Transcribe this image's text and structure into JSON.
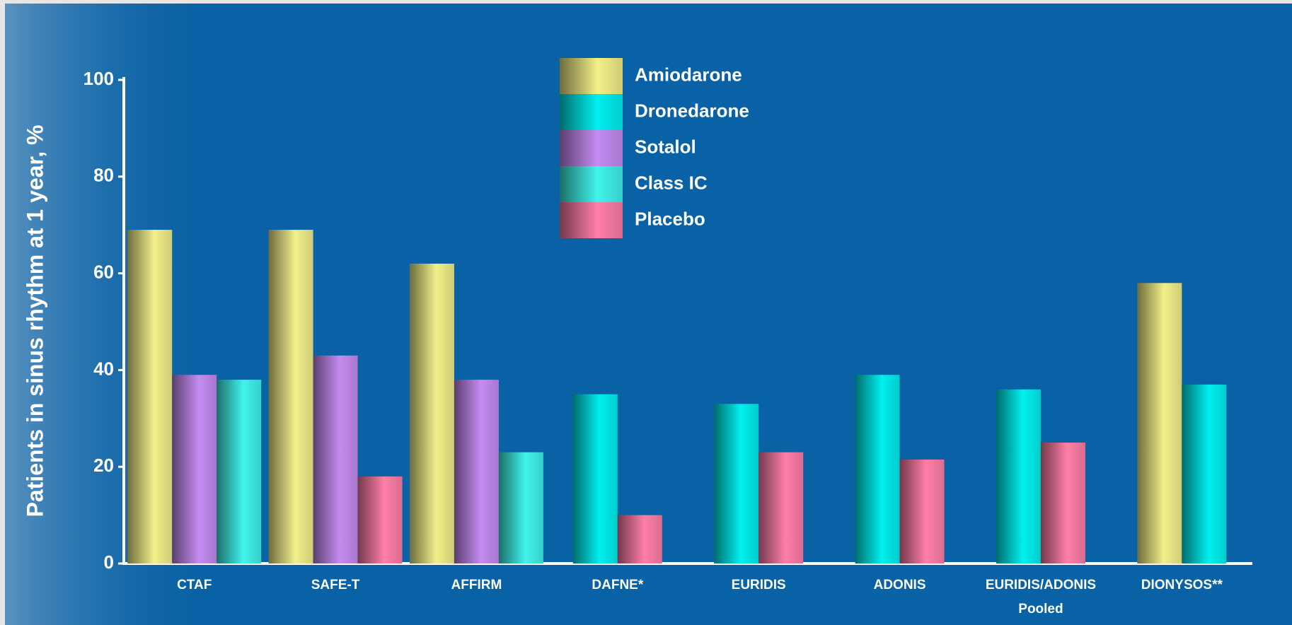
{
  "chart_data": {
    "type": "bar",
    "y_label": "Patients in sinus rhythm at 1 year, %",
    "categories": [
      "CTAF",
      "SAFE-T",
      "AFFIRM",
      "DAFNE*",
      "EURIDIS",
      "ADONIS",
      "EURIDIS/ADONIS\nPooled",
      "DIONYSOS**"
    ],
    "series": [
      {
        "name": "Amiodarone",
        "color": "#f2f08a",
        "values": [
          69,
          69,
          62,
          null,
          null,
          null,
          null,
          58
        ]
      },
      {
        "name": "Dronedarone",
        "color": "#00f0f0",
        "values": [
          null,
          null,
          null,
          35,
          33,
          39,
          36,
          37
        ]
      },
      {
        "name": "Sotalol",
        "color": "#c58cf2",
        "values": [
          39,
          43,
          38,
          null,
          null,
          null,
          null,
          null
        ]
      },
      {
        "name": "Class IC",
        "color": "#40f4ec",
        "values": [
          38,
          null,
          23,
          null,
          null,
          null,
          null,
          null
        ]
      },
      {
        "name": "Placebo",
        "color": "#ff7fa8",
        "values": [
          null,
          18,
          null,
          10,
          23,
          21.5,
          25,
          null
        ]
      }
    ],
    "ylim": [
      0,
      100
    ],
    "yticks": [
      0,
      20,
      40,
      60,
      80,
      100
    ],
    "grid": false,
    "legend": "top"
  }
}
